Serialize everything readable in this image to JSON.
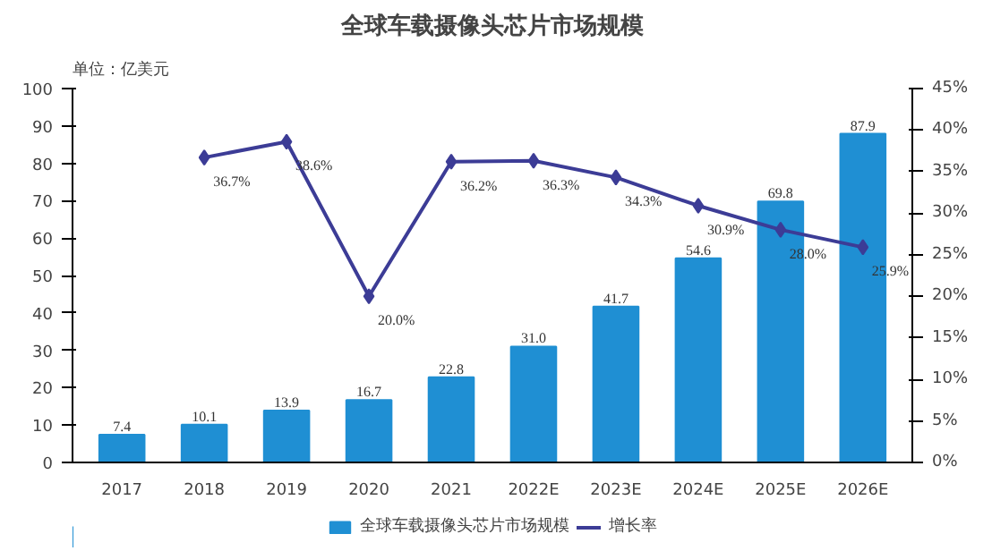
{
  "chart_data": {
    "type": "bar",
    "title": "全球车载摄像头芯片市场规模",
    "annotations": [
      "单位：亿美元"
    ],
    "categories": [
      "2017",
      "2018",
      "2019",
      "2020",
      "2021",
      "2022E",
      "2023E",
      "2024E",
      "2025E",
      "2026E"
    ],
    "series": [
      {
        "name": "全球车载摄像头芯片市场规模",
        "color": "#1f8fd3",
        "values": [
          7.4,
          10.1,
          13.9,
          16.7,
          22.8,
          31.0,
          41.7,
          54.6,
          69.8,
          87.9
        ],
        "value_labels": [
          "7.4",
          "10.1",
          "13.9",
          "16.7",
          "22.8",
          "31.0",
          "41.7",
          "54.6",
          "69.8",
          "87.9"
        ]
      },
      {
        "name": "增长率",
        "type": "line",
        "axis": "y2",
        "color": "#3c3c96",
        "marker": "diamond",
        "values": [
          null,
          36.7,
          38.6,
          20.0,
          36.2,
          36.3,
          34.3,
          30.9,
          28.0,
          25.9
        ],
        "value_labels": [
          null,
          "36.7%",
          "38.6%",
          "20.0%",
          "36.2%",
          "36.3%",
          "34.3%",
          "30.9%",
          "28.0%",
          "25.9%"
        ]
      }
    ],
    "ylim": [
      0,
      100
    ],
    "yticks": [
      0,
      10,
      20,
      30,
      40,
      50,
      60,
      70,
      80,
      90,
      100
    ],
    "y2lim": [
      0,
      45
    ],
    "y2ticks": [
      {
        "value": 0,
        "label": "0%"
      },
      {
        "value": 5,
        "label": "5%"
      },
      {
        "value": 10,
        "label": "10%"
      },
      {
        "value": 15,
        "label": "15%"
      },
      {
        "value": 20,
        "label": "20%"
      },
      {
        "value": 25,
        "label": "25%"
      },
      {
        "value": 30,
        "label": "30%"
      },
      {
        "value": 35,
        "label": "35%"
      },
      {
        "value": 40,
        "label": "40%"
      },
      {
        "value": 45,
        "label": "45%"
      }
    ],
    "grid": false,
    "legend": "bottom"
  }
}
